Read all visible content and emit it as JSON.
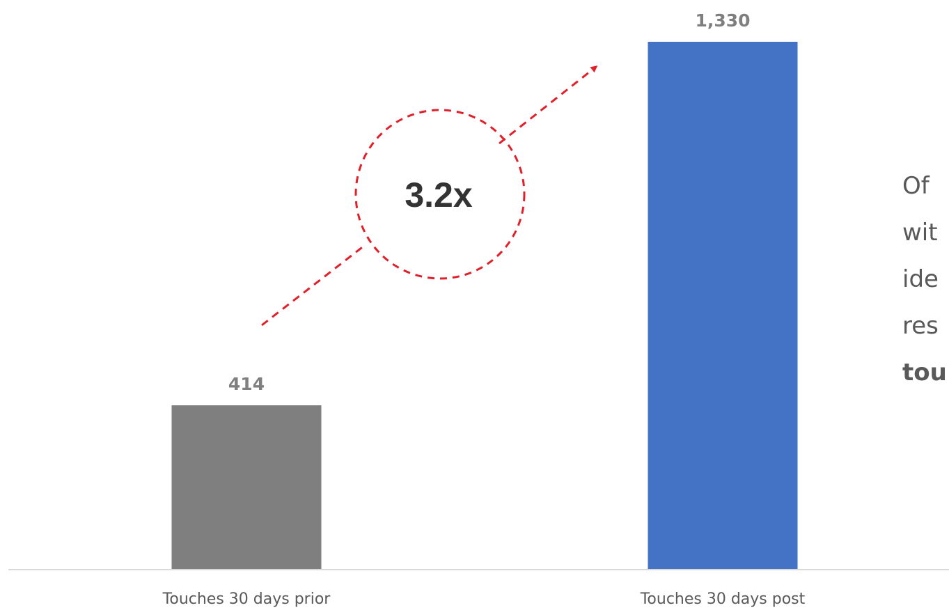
{
  "chart_data": {
    "type": "bar",
    "categories": [
      "Touches 30 days prior",
      "Touches 30 days post"
    ],
    "values": [
      414,
      1330
    ],
    "value_labels": [
      "414",
      "1,330"
    ],
    "colors": [
      "#7f7f7f",
      "#4472c4"
    ],
    "title": "",
    "xlabel": "",
    "ylabel": "",
    "ylim": [
      0,
      1330
    ],
    "grid": false,
    "annotation": {
      "text": "3.2x",
      "style": "dashed circle with dashed arrow",
      "color": "#e0202a"
    }
  },
  "side_text": {
    "lines": [
      "Of",
      "wit",
      "ide",
      "res"
    ],
    "bold_line": "tou"
  }
}
